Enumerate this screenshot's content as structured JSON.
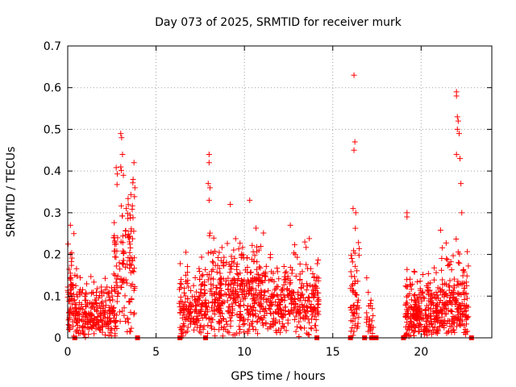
{
  "chart_data": {
    "type": "scatter",
    "title": "Day 073 of 2025, SRMTID for receiver murk",
    "xlabel": "GPS time / hours",
    "ylabel": "SRMTID / TECUs",
    "xlim": [
      0,
      24
    ],
    "ylim": [
      0,
      0.7
    ],
    "xticks": [
      0,
      5,
      10,
      15,
      20
    ],
    "yticks": [
      0,
      0.1,
      0.2,
      0.3,
      0.4,
      0.5,
      0.6,
      0.7
    ],
    "ytick_labels": [
      "0",
      "0.1",
      "0.2",
      "0.3",
      "0.4",
      "0.5",
      "0.6",
      "0.7"
    ],
    "grid": true,
    "marker": "+",
    "marker_color": "#ff0000",
    "segments": [
      {
        "x_start": 0.0,
        "x_end": 0.25,
        "y_base": 0.06,
        "y_spread": 0.22,
        "n": 45
      },
      {
        "x_start": 0.25,
        "x_end": 2.8,
        "y_base": 0.05,
        "y_spread": 0.12,
        "n": 260
      },
      {
        "x_start": 2.6,
        "x_end": 3.8,
        "y_base": 0.15,
        "y_spread": 0.3,
        "n": 130
      },
      {
        "x_start": 6.3,
        "x_end": 7.6,
        "y_base": 0.05,
        "y_spread": 0.16,
        "n": 140
      },
      {
        "x_start": 7.6,
        "x_end": 9.6,
        "y_base": 0.08,
        "y_spread": 0.18,
        "n": 230
      },
      {
        "x_start": 9.6,
        "x_end": 11.2,
        "y_base": 0.1,
        "y_spread": 0.18,
        "n": 200
      },
      {
        "x_start": 11.2,
        "x_end": 14.2,
        "y_base": 0.07,
        "y_spread": 0.16,
        "n": 300
      },
      {
        "x_start": 16.0,
        "x_end": 16.5,
        "y_base": 0.05,
        "y_spread": 0.25,
        "n": 55
      },
      {
        "x_start": 16.9,
        "x_end": 17.3,
        "y_base": 0.02,
        "y_spread": 0.16,
        "n": 25
      },
      {
        "x_start": 19.1,
        "x_end": 21.0,
        "y_base": 0.04,
        "y_spread": 0.14,
        "n": 260
      },
      {
        "x_start": 21.0,
        "x_end": 22.7,
        "y_base": 0.06,
        "y_spread": 0.2,
        "n": 200
      }
    ],
    "outliers": [
      {
        "x": 3.0,
        "y": 0.49
      },
      {
        "x": 3.05,
        "y": 0.48
      },
      {
        "x": 3.1,
        "y": 0.44
      },
      {
        "x": 3.0,
        "y": 0.41
      },
      {
        "x": 3.15,
        "y": 0.39
      },
      {
        "x": 3.75,
        "y": 0.42
      },
      {
        "x": 3.7,
        "y": 0.38
      },
      {
        "x": 3.8,
        "y": 0.36
      },
      {
        "x": 8.0,
        "y": 0.44
      },
      {
        "x": 8.0,
        "y": 0.42
      },
      {
        "x": 7.95,
        "y": 0.37
      },
      {
        "x": 8.05,
        "y": 0.36
      },
      {
        "x": 8.0,
        "y": 0.33
      },
      {
        "x": 16.2,
        "y": 0.63
      },
      {
        "x": 16.25,
        "y": 0.47
      },
      {
        "x": 16.2,
        "y": 0.45
      },
      {
        "x": 16.15,
        "y": 0.31
      },
      {
        "x": 16.3,
        "y": 0.3
      },
      {
        "x": 22.0,
        "y": 0.59
      },
      {
        "x": 22.0,
        "y": 0.58
      },
      {
        "x": 22.05,
        "y": 0.53
      },
      {
        "x": 22.1,
        "y": 0.52
      },
      {
        "x": 22.05,
        "y": 0.5
      },
      {
        "x": 22.15,
        "y": 0.49
      },
      {
        "x": 22.2,
        "y": 0.43
      },
      {
        "x": 22.0,
        "y": 0.44
      },
      {
        "x": 22.25,
        "y": 0.37
      },
      {
        "x": 22.3,
        "y": 0.3
      },
      {
        "x": 10.3,
        "y": 0.33
      },
      {
        "x": 9.2,
        "y": 0.32
      },
      {
        "x": 12.6,
        "y": 0.27
      },
      {
        "x": 19.2,
        "y": 0.3
      },
      {
        "x": 19.2,
        "y": 0.29
      },
      {
        "x": 0.15,
        "y": 0.27
      },
      {
        "x": 0.35,
        "y": 0.25
      }
    ],
    "zero_markers": [
      0.4,
      3.95,
      6.35,
      7.8,
      14.1,
      16.0,
      16.8,
      17.2,
      17.45,
      19.0,
      22.85
    ]
  }
}
